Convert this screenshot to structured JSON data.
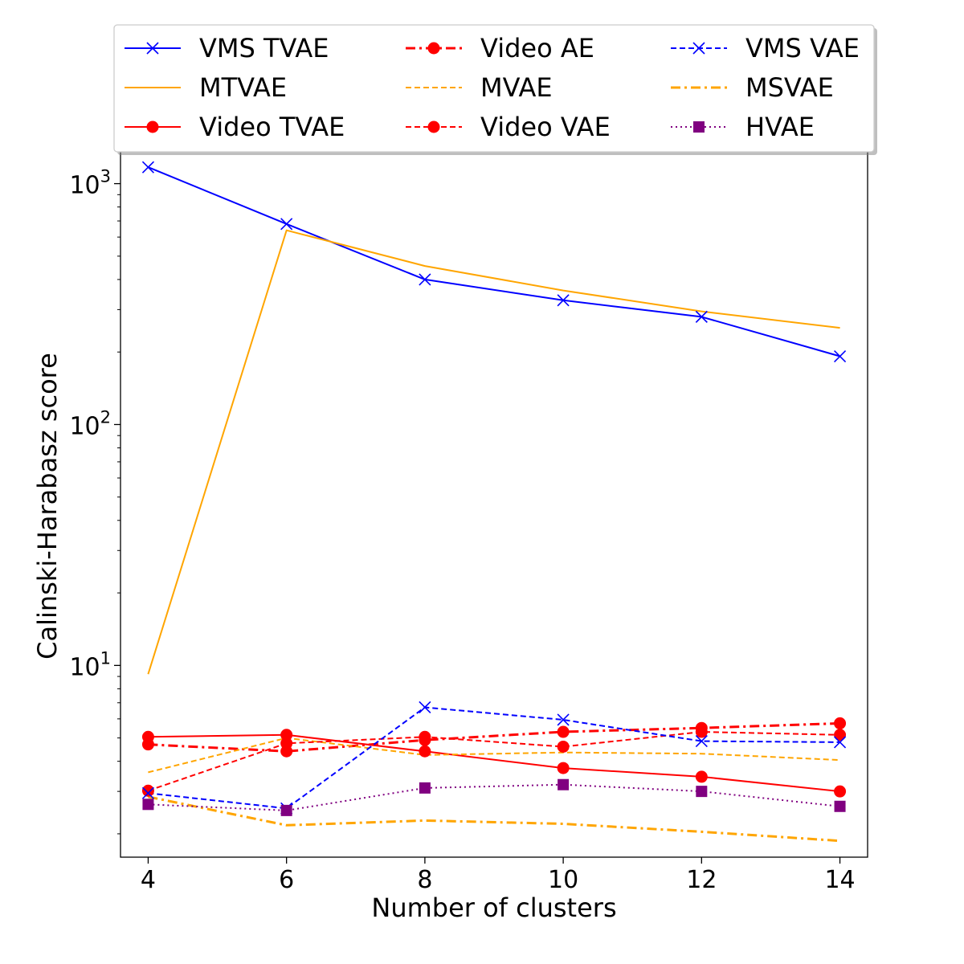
{
  "chart_data": {
    "type": "line",
    "xlabel": "Number of clusters",
    "ylabel": "Calinski-Harabasz score",
    "yscale": "log",
    "xlim": [
      3.6,
      14.4
    ],
    "ylim": [
      1.6,
      1900
    ],
    "grid": false,
    "legend_position": "top",
    "x": [
      4,
      6,
      8,
      10,
      12,
      14
    ],
    "x_ticks": [
      {
        "value": 4,
        "label": "4"
      },
      {
        "value": 6,
        "label": "6"
      },
      {
        "value": 8,
        "label": "8"
      },
      {
        "value": 10,
        "label": "10"
      },
      {
        "value": 12,
        "label": "12"
      },
      {
        "value": 14,
        "label": "14"
      }
    ],
    "y_ticks": [
      {
        "value": 10,
        "base": "10",
        "exp": "1"
      },
      {
        "value": 100,
        "base": "10",
        "exp": "2"
      },
      {
        "value": 1000,
        "base": "10",
        "exp": "3"
      }
    ],
    "series": [
      {
        "name": "VMS TVAE",
        "color": "#0000ff",
        "line": "solid",
        "marker": "x",
        "values": [
          1170,
          680,
          400,
          328,
          280,
          192
        ]
      },
      {
        "name": "MTVAE",
        "color": "#ffa500",
        "line": "solid",
        "marker": "none",
        "values": [
          9.2,
          640,
          455,
          360,
          295,
          252
        ]
      },
      {
        "name": "Video TVAE",
        "color": "#ff0000",
        "line": "solid",
        "marker": "circle",
        "values": [
          5.05,
          5.15,
          4.4,
          3.75,
          3.45,
          3.0
        ]
      },
      {
        "name": "Video AE",
        "color": "#ff0000",
        "line": "dashdot",
        "marker": "circle",
        "values": [
          4.7,
          4.4,
          4.9,
          5.3,
          5.5,
          5.75
        ]
      },
      {
        "name": "MVAE",
        "color": "#ffa500",
        "line": "dashed",
        "marker": "none",
        "values": [
          3.6,
          5.0,
          4.25,
          4.35,
          4.3,
          4.05
        ]
      },
      {
        "name": "Video VAE",
        "color": "#ff0000",
        "line": "dashed",
        "marker": "circle",
        "values": [
          3.02,
          4.75,
          5.05,
          4.6,
          5.3,
          5.15
        ]
      },
      {
        "name": "VMS VAE",
        "color": "#0000ff",
        "line": "dashed",
        "marker": "x",
        "values": [
          2.95,
          2.55,
          6.7,
          5.95,
          4.85,
          4.8
        ]
      },
      {
        "name": "MSVAE",
        "color": "#ffa500",
        "line": "dashdot",
        "marker": "none",
        "values": [
          2.85,
          2.17,
          2.27,
          2.2,
          2.04,
          1.87
        ]
      },
      {
        "name": "HVAE",
        "color": "#800080",
        "line": "dotted",
        "marker": "square",
        "values": [
          2.65,
          2.5,
          3.1,
          3.2,
          3.0,
          2.6
        ]
      }
    ]
  }
}
